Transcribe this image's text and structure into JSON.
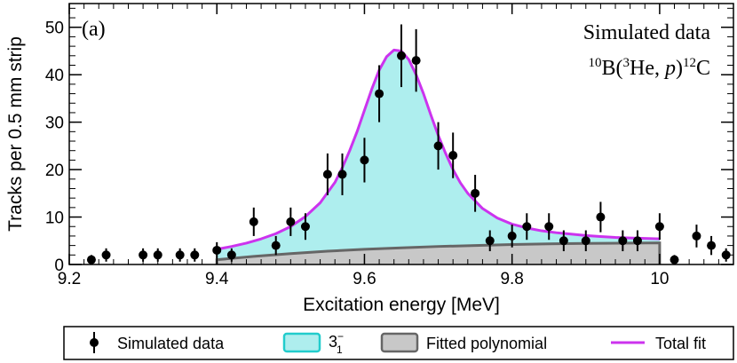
{
  "chart_data": {
    "type": "scatter",
    "panel_label": "(a)",
    "annotation_line1": "Simulated data",
    "reaction": {
      "sup1": "10",
      "el1": "B(",
      "sup2": "3",
      "el2": "He, ",
      "ital": "p",
      "el3": ")",
      "sup3": "12",
      "el4": "C"
    },
    "xlabel": "Excitation energy [MeV]",
    "ylabel": "Tracks per 0.5 mm strip",
    "xlim": [
      9.2,
      10.1
    ],
    "ylim": [
      0,
      55
    ],
    "x_ticks": [
      "9.2",
      "9.4",
      "9.6",
      "9.8",
      "10"
    ],
    "y_ticks": [
      "0",
      "10",
      "20",
      "30",
      "40",
      "50"
    ],
    "legend": [
      {
        "label": "Simulated data",
        "marker": "errorbar-point",
        "color": "#000000"
      },
      {
        "label_main": "3",
        "label_sup": "−",
        "label_sub": "1",
        "marker": "filled-box",
        "color": "#aeeeee",
        "edge": "#22cccc"
      },
      {
        "label": "Fitted polynomial",
        "marker": "filled-box",
        "color": "#c8c8c8",
        "edge": "#666666"
      },
      {
        "label": "Total fit",
        "marker": "line",
        "color": "#cc33ee"
      }
    ],
    "series": [
      {
        "name": "Simulated data",
        "x": [
          9.23,
          9.25,
          9.3,
          9.32,
          9.35,
          9.37,
          9.4,
          9.42,
          9.45,
          9.48,
          9.5,
          9.52,
          9.55,
          9.57,
          9.6,
          9.62,
          9.65,
          9.67,
          9.7,
          9.72,
          9.75,
          9.77,
          9.8,
          9.82,
          9.85,
          9.87,
          9.9,
          9.92,
          9.95,
          9.97,
          10.0,
          10.02,
          10.05,
          10.07,
          10.09
        ],
        "y": [
          1,
          2,
          2,
          2,
          2,
          2,
          3,
          2,
          9,
          4,
          9,
          8,
          19,
          19,
          22,
          36,
          44,
          43,
          25,
          23,
          15,
          5,
          6,
          8,
          8,
          5,
          5,
          10,
          5,
          5,
          8,
          1,
          6,
          4,
          2
        ],
        "yerr": [
          1,
          1.4,
          1.4,
          1.4,
          1.4,
          1.4,
          1.7,
          1.4,
          3,
          2,
          3,
          2.8,
          4.4,
          4.4,
          4.7,
          6,
          6.6,
          6.6,
          5,
          4.8,
          3.9,
          2.2,
          2.4,
          2.8,
          2.8,
          2.2,
          2.2,
          3.2,
          2.2,
          2.2,
          2.8,
          1,
          2.4,
          2,
          1.4
        ]
      },
      {
        "name": "Total fit",
        "x": [
          9.4,
          9.42,
          9.44,
          9.46,
          9.48,
          9.5,
          9.52,
          9.54,
          9.56,
          9.57,
          9.58,
          9.59,
          9.6,
          9.61,
          9.62,
          9.63,
          9.64,
          9.65,
          9.66,
          9.67,
          9.68,
          9.69,
          9.7,
          9.71,
          9.72,
          9.73,
          9.74,
          9.76,
          9.78,
          9.8,
          9.82,
          9.84,
          9.86,
          9.88,
          9.9,
          9.92,
          9.94,
          9.96,
          9.98,
          10.0
        ],
        "y": [
          3.2,
          3.8,
          4.5,
          5.4,
          6.5,
          8.0,
          10.1,
          13.0,
          17.3,
          20.4,
          24.0,
          28.0,
          32.5,
          37.0,
          41.0,
          43.8,
          45.2,
          45.0,
          43.2,
          40.0,
          36.0,
          31.5,
          27.2,
          23.4,
          20.0,
          17.2,
          15.0,
          11.8,
          9.8,
          8.5,
          7.7,
          7.1,
          6.7,
          6.4,
          6.1,
          5.9,
          5.7,
          5.6,
          5.5,
          5.4
        ]
      },
      {
        "name": "Fitted polynomial",
        "x": [
          9.4,
          9.45,
          9.5,
          9.55,
          9.6,
          9.65,
          9.7,
          9.75,
          9.8,
          9.85,
          9.9,
          9.95,
          10.0
        ],
        "y": [
          1.0,
          1.7,
          2.3,
          2.8,
          3.2,
          3.5,
          3.8,
          4.0,
          4.2,
          4.35,
          4.45,
          4.5,
          4.55
        ]
      }
    ]
  }
}
